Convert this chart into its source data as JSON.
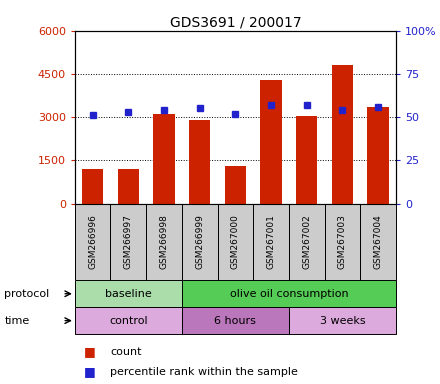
{
  "title": "GDS3691 / 200017",
  "samples": [
    "GSM266996",
    "GSM266997",
    "GSM266998",
    "GSM266999",
    "GSM267000",
    "GSM267001",
    "GSM267002",
    "GSM267003",
    "GSM267004"
  ],
  "counts": [
    1200,
    1200,
    3100,
    2900,
    1300,
    4300,
    3050,
    4800,
    3350
  ],
  "percentile_ranks": [
    51,
    53,
    54,
    55,
    52,
    57,
    57,
    54,
    56
  ],
  "left_yticks": [
    0,
    1500,
    3000,
    4500,
    6000
  ],
  "right_yticks": [
    0,
    25,
    50,
    75,
    100
  ],
  "right_ylabels": [
    "0",
    "25",
    "50",
    "75",
    "100%"
  ],
  "bar_color": "#cc2200",
  "dot_color": "#2222cc",
  "protocol_groups": [
    {
      "label": "baseline",
      "start": 0,
      "end": 3,
      "color": "#aaddaa"
    },
    {
      "label": "olive oil consumption",
      "start": 3,
      "end": 9,
      "color": "#55cc55"
    }
  ],
  "time_groups": [
    {
      "label": "control",
      "start": 0,
      "end": 3,
      "color": "#ddaadd"
    },
    {
      "label": "6 hours",
      "start": 3,
      "end": 6,
      "color": "#bb77bb"
    },
    {
      "label": "3 weeks",
      "start": 6,
      "end": 9,
      "color": "#ddaadd"
    }
  ],
  "legend_items": [
    {
      "label": "count",
      "color": "#cc2200"
    },
    {
      "label": "percentile rank within the sample",
      "color": "#2222cc"
    }
  ],
  "sample_box_color": "#cccccc"
}
